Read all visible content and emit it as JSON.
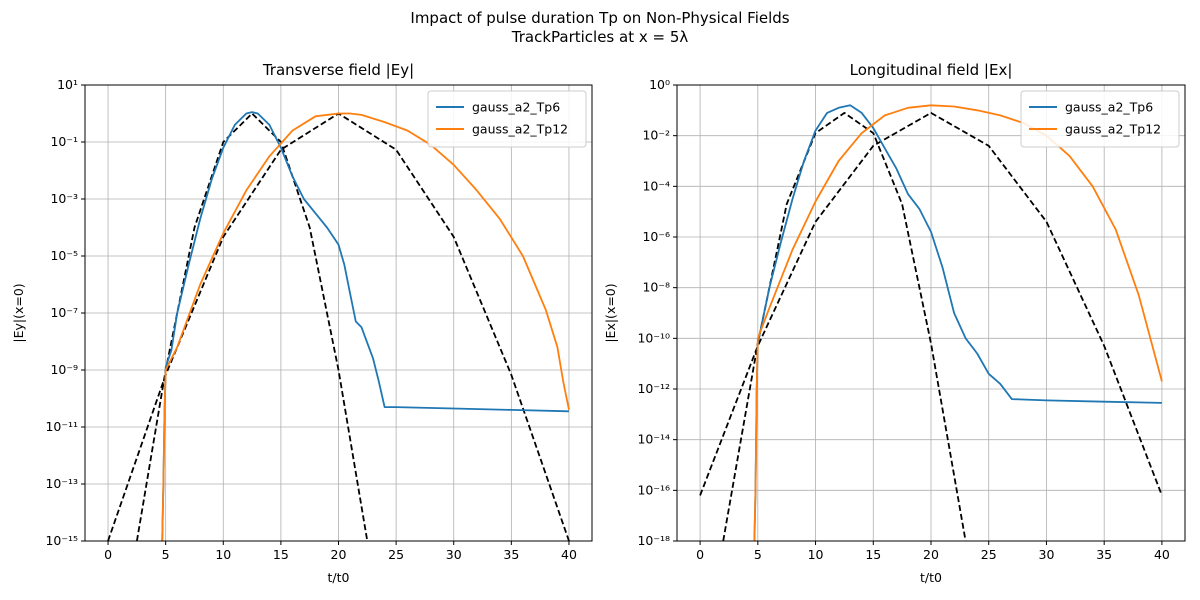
{
  "figure": {
    "title_line1": "Impact of pulse duration Tp on Non-Physical Fields",
    "title_line2": "TrackParticles at x = 5λ"
  },
  "chart_data": [
    {
      "type": "line",
      "title": "Transverse field |Ey|",
      "xlabel": "t/t0",
      "ylabel": "|Ey|(x=0)",
      "xlim": [
        -2,
        42
      ],
      "ylim_log10": [
        -15,
        1
      ],
      "yscale": "log",
      "grid": true,
      "legend": "top-right",
      "xticks": [
        0,
        5,
        10,
        15,
        20,
        25,
        30,
        35,
        40
      ],
      "xtick_labels": [
        "0",
        "5",
        "10",
        "15",
        "20",
        "25",
        "30",
        "35",
        "40"
      ],
      "ytick_exponents": [
        -15,
        -13,
        -11,
        -9,
        -7,
        -5,
        -3,
        -1,
        1
      ],
      "ytick_labels": [
        "10⁻¹⁵",
        "10⁻¹³",
        "10⁻¹¹",
        "10⁻⁹",
        "10⁻⁷",
        "10⁻⁵",
        "10⁻³",
        "10⁻¹",
        "10¹"
      ],
      "series": [
        {
          "name": "gauss_a2_Tp6",
          "color": "#1f77b4",
          "x": [
            4.7,
            4.8,
            4.9,
            5.0,
            5.5,
            6,
            7,
            8,
            9,
            10,
            11,
            12,
            12.5,
            13,
            14,
            15,
            16,
            17,
            18,
            19,
            20,
            20.5,
            21,
            21.5,
            22,
            23,
            23.5,
            24,
            25,
            30,
            35,
            40
          ],
          "log10_y": [
            -15,
            -13,
            -10.5,
            -8.9,
            -8.3,
            -7.0,
            -5.3,
            -3.7,
            -2.3,
            -1.2,
            -0.4,
            0.0,
            0.05,
            0.0,
            -0.4,
            -1.2,
            -2.2,
            -3.0,
            -3.5,
            -4.0,
            -4.6,
            -5.3,
            -6.3,
            -7.3,
            -7.5,
            -8.6,
            -9.4,
            -10.3,
            -10.3,
            -10.35,
            -10.4,
            -10.45
          ]
        },
        {
          "name": "gauss_a2_Tp12",
          "color": "#ff7f0e",
          "x": [
            4.7,
            4.8,
            4.9,
            5.0,
            6,
            8,
            10,
            12,
            14,
            16,
            18,
            20,
            21,
            22,
            24,
            26,
            28,
            30,
            32,
            34,
            36,
            38,
            39,
            39.5,
            40
          ],
          "log10_y": [
            -15,
            -13,
            -10.5,
            -9.0,
            -8.2,
            -6.0,
            -4.2,
            -2.7,
            -1.5,
            -0.6,
            -0.1,
            0.0,
            0.0,
            -0.05,
            -0.3,
            -0.6,
            -1.1,
            -1.8,
            -2.7,
            -3.7,
            -5.0,
            -6.9,
            -8.2,
            -9.4,
            -10.4
          ]
        },
        {
          "name": "",
          "color": "#000000",
          "dashed": true,
          "x": [
            2.5,
            5,
            7.5,
            10,
            12.5,
            15,
            17.5,
            20,
            22.5
          ],
          "log10_y": [
            -15,
            -9.0,
            -4.0,
            -1.0,
            0.0,
            -1.0,
            -4.0,
            -9.0,
            -15
          ]
        },
        {
          "name": "",
          "color": "#000000",
          "dashed": true,
          "x": [
            0,
            5,
            10,
            15,
            20,
            25,
            30,
            35,
            40
          ],
          "log10_y": [
            -15,
            -9.17,
            -4.33,
            -1.27,
            0.0,
            -1.27,
            -4.33,
            -9.17,
            -15
          ]
        }
      ]
    },
    {
      "type": "line",
      "title": "Longitudinal field |Ex|",
      "xlabel": "t/t0",
      "ylabel": "|Ex|(x=0)",
      "xlim": [
        -2,
        42
      ],
      "ylim_log10": [
        -18,
        0
      ],
      "yscale": "log",
      "grid": true,
      "legend": "top-right",
      "xticks": [
        0,
        5,
        10,
        15,
        20,
        25,
        30,
        35,
        40
      ],
      "xtick_labels": [
        "0",
        "5",
        "10",
        "15",
        "20",
        "25",
        "30",
        "35",
        "40"
      ],
      "ytick_exponents": [
        -18,
        -16,
        -14,
        -12,
        -10,
        -8,
        -6,
        -4,
        -2,
        0
      ],
      "ytick_labels": [
        "10⁻¹⁸",
        "10⁻¹⁶",
        "10⁻¹⁴",
        "10⁻¹²",
        "10⁻¹⁰",
        "10⁻⁸",
        "10⁻⁶",
        "10⁻⁴",
        "10⁻²",
        "10⁰"
      ],
      "series": [
        {
          "name": "gauss_a2_Tp6",
          "color": "#1f77b4",
          "x": [
            4.7,
            4.8,
            4.9,
            5.0,
            6,
            7,
            8,
            9,
            10,
            11,
            12,
            12.5,
            13,
            14,
            15,
            16,
            17,
            18,
            19,
            20,
            21,
            22,
            23,
            24,
            25,
            26,
            27,
            30,
            35,
            40
          ],
          "log10_y": [
            -18,
            -16,
            -12,
            -10.2,
            -8.0,
            -6.2,
            -4.5,
            -3.0,
            -1.8,
            -1.1,
            -0.9,
            -0.85,
            -0.8,
            -1.1,
            -1.7,
            -2.5,
            -3.3,
            -4.3,
            -4.9,
            -5.8,
            -7.2,
            -9.0,
            -10.0,
            -10.6,
            -11.4,
            -11.8,
            -12.4,
            -12.45,
            -12.5,
            -12.55
          ]
        },
        {
          "name": "gauss_a2_Tp12",
          "color": "#ff7f0e",
          "x": [
            4.7,
            4.8,
            4.9,
            5.0,
            6,
            8,
            10,
            12,
            14,
            16,
            18,
            20,
            22,
            24,
            26,
            28,
            30,
            32,
            34,
            36,
            38,
            40
          ],
          "log10_y": [
            -18,
            -16,
            -12,
            -10.0,
            -8.8,
            -6.5,
            -4.6,
            -3.0,
            -1.9,
            -1.2,
            -0.9,
            -0.8,
            -0.85,
            -1.0,
            -1.2,
            -1.5,
            -2.0,
            -2.8,
            -4.0,
            -5.7,
            -8.3,
            -11.7
          ]
        },
        {
          "name": "",
          "color": "#000000",
          "dashed": true,
          "x": [
            2,
            5,
            7.5,
            10,
            12.5,
            15,
            17.5,
            20,
            23
          ],
          "log10_y": [
            -18,
            -10.2,
            -4.7,
            -1.9,
            -1.1,
            -1.9,
            -4.7,
            -10.2,
            -18
          ]
        },
        {
          "name": "",
          "color": "#000000",
          "dashed": true,
          "x": [
            0,
            5,
            10,
            15,
            20,
            25,
            30,
            35,
            40
          ],
          "log10_y": [
            -16.2,
            -10.3,
            -5.4,
            -2.4,
            -1.1,
            -2.4,
            -5.4,
            -10.3,
            -16.2
          ]
        }
      ]
    }
  ]
}
